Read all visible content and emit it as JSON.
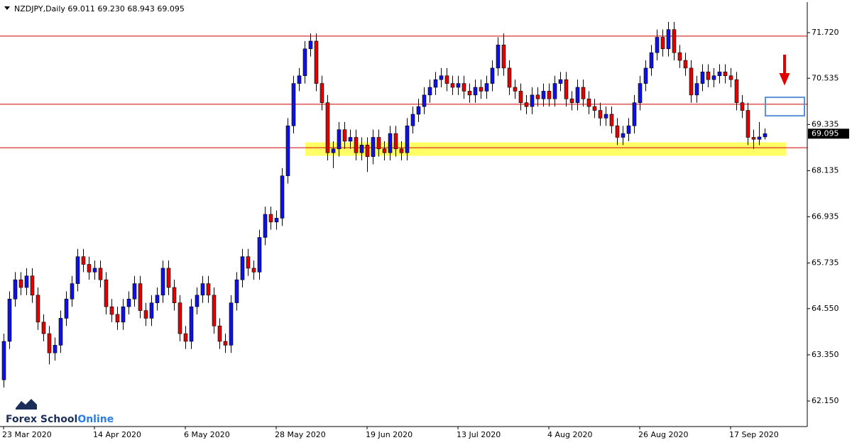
{
  "chart_data": {
    "type": "candlestick",
    "title": "NZDJPY,Daily  69.011 69.230 68.943 69.095",
    "logo": [
      "Forex School",
      "Online"
    ],
    "up_color": "#1010e8",
    "down_color": "#e00000",
    "grid": false,
    "ylim": [
      61.505,
      72.513
    ],
    "yticks": [
      {
        "value": 62.15,
        "label": "62.150"
      },
      {
        "value": 63.35,
        "label": "63.350"
      },
      {
        "value": 64.55,
        "label": "64.550"
      },
      65.735,
      66.935,
      {
        "value": 68.135,
        "label": "68.135"
      },
      69.335,
      {
        "value": 70.535,
        "label": "70.535"
      },
      {
        "value": 71.72,
        "label": "71.720"
      }
    ],
    "hlines": [
      {
        "value": 71.63,
        "color": "#cc0000"
      },
      {
        "value": 69.86,
        "color": "#cc0000"
      },
      {
        "value": 68.73,
        "color": "#cc0000"
      }
    ],
    "zone": {
      "range": [
        68.52,
        68.87
      ],
      "color": "#ffff66"
    },
    "target_box": {
      "range": [
        69.56,
        70.04
      ],
      "color": "#5b8fd6"
    },
    "categories": [
      "23 Mar 2020",
      null,
      null,
      null,
      null,
      null,
      null,
      null,
      null,
      null,
      null,
      null,
      null,
      null,
      null,
      null,
      "14 Apr 2020",
      null,
      null,
      null,
      null,
      null,
      null,
      null,
      null,
      null,
      null,
      null,
      null,
      null,
      null,
      null,
      "6 May 2020",
      null,
      null,
      null,
      null,
      null,
      null,
      null,
      null,
      null,
      null,
      null,
      null,
      null,
      null,
      null,
      "28 May 2020",
      null,
      null,
      null,
      null,
      null,
      null,
      null,
      null,
      null,
      null,
      null,
      null,
      null,
      null,
      null,
      "19 Jun 2020",
      null,
      null,
      null,
      null,
      null,
      null,
      null,
      null,
      null,
      null,
      null,
      null,
      null,
      null,
      null,
      "13 Jul 2020",
      null,
      null,
      null,
      null,
      null,
      null,
      null,
      null,
      null,
      null,
      null,
      null,
      null,
      null,
      null,
      "4 Aug 2020",
      null,
      null,
      null,
      null,
      null,
      null,
      null,
      null,
      null,
      null,
      null,
      null,
      null,
      null,
      null,
      "26 Aug 2020",
      null,
      null,
      null,
      null,
      null,
      null,
      null,
      null,
      null,
      null,
      null,
      null,
      null,
      null,
      null,
      "17 Sep 2020",
      null,
      null,
      null,
      null,
      null,
      null
    ],
    "ohlc": [
      [
        62.7,
        63.9,
        62.5,
        63.7
      ],
      [
        63.7,
        65.0,
        63.5,
        64.8
      ],
      [
        64.8,
        65.5,
        64.6,
        65.3
      ],
      [
        65.3,
        65.5,
        64.9,
        65.1
      ],
      [
        65.1,
        65.6,
        64.9,
        65.4
      ],
      [
        65.4,
        65.6,
        64.7,
        64.9
      ],
      [
        64.9,
        65.1,
        64.0,
        64.2
      ],
      [
        64.2,
        64.4,
        63.7,
        63.9
      ],
      [
        63.9,
        64.1,
        63.1,
        63.4
      ],
      [
        63.4,
        63.8,
        63.2,
        63.6
      ],
      [
        63.6,
        64.5,
        63.4,
        64.3
      ],
      [
        64.3,
        65.0,
        64.1,
        64.8
      ],
      [
        64.8,
        65.4,
        64.6,
        65.2
      ],
      [
        65.2,
        66.1,
        65.0,
        65.9
      ],
      [
        65.9,
        66.1,
        65.5,
        65.7
      ],
      [
        65.7,
        65.9,
        65.3,
        65.5
      ],
      [
        65.5,
        65.8,
        65.3,
        65.6
      ],
      [
        65.6,
        65.8,
        65.1,
        65.3
      ],
      [
        65.3,
        65.5,
        64.4,
        64.6
      ],
      [
        64.6,
        64.8,
        64.2,
        64.4
      ],
      [
        64.4,
        64.6,
        64.0,
        64.2
      ],
      [
        64.2,
        64.8,
        64.0,
        64.6
      ],
      [
        64.6,
        65.0,
        64.4,
        64.8
      ],
      [
        64.8,
        65.4,
        64.6,
        65.2
      ],
      [
        65.2,
        65.4,
        64.3,
        64.5
      ],
      [
        64.5,
        64.7,
        64.1,
        64.3
      ],
      [
        64.3,
        64.9,
        64.1,
        64.7
      ],
      [
        64.7,
        65.1,
        64.5,
        64.9
      ],
      [
        64.9,
        65.8,
        64.7,
        65.6
      ],
      [
        65.6,
        65.8,
        64.9,
        65.1
      ],
      [
        65.1,
        65.3,
        64.5,
        64.7
      ],
      [
        64.7,
        64.9,
        63.7,
        63.9
      ],
      [
        63.9,
        64.1,
        63.5,
        63.7
      ],
      [
        63.7,
        64.8,
        63.5,
        64.6
      ],
      [
        64.6,
        65.1,
        64.4,
        64.9
      ],
      [
        64.9,
        65.4,
        64.7,
        65.2
      ],
      [
        65.2,
        65.4,
        64.7,
        64.9
      ],
      [
        64.9,
        65.1,
        63.9,
        64.1
      ],
      [
        64.1,
        64.3,
        63.5,
        63.7
      ],
      [
        63.7,
        63.9,
        63.4,
        63.6
      ],
      [
        63.6,
        64.9,
        63.4,
        64.7
      ],
      [
        64.7,
        65.5,
        64.5,
        65.3
      ],
      [
        65.3,
        66.1,
        65.1,
        65.9
      ],
      [
        65.9,
        66.1,
        65.4,
        65.6
      ],
      [
        65.6,
        65.8,
        65.3,
        65.5
      ],
      [
        65.5,
        66.6,
        65.3,
        66.4
      ],
      [
        66.4,
        67.2,
        66.2,
        67.0
      ],
      [
        67.0,
        67.2,
        66.6,
        66.8
      ],
      [
        66.8,
        67.1,
        66.6,
        66.9
      ],
      [
        66.9,
        68.2,
        66.7,
        68.0
      ],
      [
        68.0,
        69.5,
        67.8,
        69.3
      ],
      [
        69.3,
        70.6,
        69.1,
        70.4
      ],
      [
        70.4,
        70.8,
        70.2,
        70.6
      ],
      [
        70.6,
        71.5,
        70.4,
        71.3
      ],
      [
        71.3,
        71.7,
        71.1,
        71.5
      ],
      [
        71.5,
        71.7,
        70.2,
        70.4
      ],
      [
        70.4,
        70.6,
        69.7,
        69.9
      ],
      [
        69.9,
        70.1,
        68.4,
        68.6
      ],
      [
        68.6,
        68.9,
        68.2,
        68.7
      ],
      [
        68.7,
        69.4,
        68.5,
        69.2
      ],
      [
        69.2,
        69.4,
        68.7,
        68.9
      ],
      [
        68.9,
        69.2,
        68.7,
        69.0
      ],
      [
        69.0,
        69.2,
        68.4,
        68.6
      ],
      [
        68.6,
        69.0,
        68.4,
        68.8
      ],
      [
        68.8,
        69.0,
        68.1,
        68.5
      ],
      [
        68.5,
        69.2,
        68.3,
        69.0
      ],
      [
        69.0,
        69.2,
        68.5,
        68.7
      ],
      [
        68.7,
        68.9,
        68.4,
        68.6
      ],
      [
        68.6,
        69.3,
        68.4,
        69.1
      ],
      [
        69.1,
        69.3,
        68.5,
        68.7
      ],
      [
        68.7,
        68.9,
        68.4,
        68.6
      ],
      [
        68.6,
        69.5,
        68.4,
        69.3
      ],
      [
        69.3,
        69.8,
        69.1,
        69.6
      ],
      [
        69.6,
        70.0,
        69.4,
        69.8
      ],
      [
        69.8,
        70.3,
        69.6,
        70.1
      ],
      [
        70.1,
        70.5,
        69.9,
        70.3
      ],
      [
        70.3,
        70.7,
        70.1,
        70.5
      ],
      [
        70.5,
        70.8,
        70.3,
        70.6
      ],
      [
        70.6,
        70.8,
        70.2,
        70.4
      ],
      [
        70.4,
        70.6,
        70.1,
        70.3
      ],
      [
        70.3,
        70.6,
        70.1,
        70.4
      ],
      [
        70.4,
        70.6,
        70.0,
        70.2
      ],
      [
        70.2,
        70.4,
        69.9,
        70.1
      ],
      [
        70.1,
        70.5,
        69.9,
        70.3
      ],
      [
        70.3,
        70.5,
        70.0,
        70.2
      ],
      [
        70.2,
        70.6,
        70.0,
        70.4
      ],
      [
        70.4,
        71.0,
        70.2,
        70.8
      ],
      [
        70.8,
        71.6,
        70.6,
        71.4
      ],
      [
        71.4,
        71.7,
        70.6,
        70.8
      ],
      [
        70.8,
        71.0,
        70.1,
        70.3
      ],
      [
        70.3,
        70.5,
        70.0,
        70.2
      ],
      [
        70.2,
        70.4,
        69.7,
        69.9
      ],
      [
        69.9,
        70.1,
        69.6,
        69.8
      ],
      [
        69.8,
        70.3,
        69.6,
        70.1
      ],
      [
        70.1,
        70.3,
        69.8,
        70.0
      ],
      [
        70.0,
        70.4,
        69.8,
        70.2
      ],
      [
        70.2,
        70.4,
        69.8,
        70.0
      ],
      [
        70.0,
        70.6,
        69.8,
        70.4
      ],
      [
        70.4,
        70.7,
        70.2,
        70.5
      ],
      [
        70.5,
        70.7,
        69.8,
        70.0
      ],
      [
        70.0,
        70.2,
        69.7,
        69.9
      ],
      [
        69.9,
        70.5,
        69.7,
        70.3
      ],
      [
        70.3,
        70.5,
        69.8,
        70.0
      ],
      [
        70.0,
        70.2,
        69.6,
        69.8
      ],
      [
        69.8,
        70.0,
        69.5,
        69.7
      ],
      [
        69.7,
        69.9,
        69.3,
        69.5
      ],
      [
        69.5,
        69.8,
        69.3,
        69.6
      ],
      [
        69.6,
        69.8,
        69.1,
        69.3
      ],
      [
        69.3,
        69.5,
        68.8,
        69.0
      ],
      [
        69.0,
        69.3,
        68.8,
        69.1
      ],
      [
        69.1,
        69.5,
        68.9,
        69.3
      ],
      [
        69.3,
        70.1,
        69.1,
        69.9
      ],
      [
        69.9,
        70.6,
        69.7,
        70.4
      ],
      [
        70.4,
        71.0,
        70.2,
        70.8
      ],
      [
        70.8,
        71.4,
        70.6,
        71.2
      ],
      [
        71.2,
        71.8,
        71.0,
        71.6
      ],
      [
        71.6,
        71.8,
        71.1,
        71.3
      ],
      [
        71.3,
        72.0,
        71.1,
        71.8
      ],
      [
        71.8,
        72.0,
        71.0,
        71.2
      ],
      [
        71.2,
        71.4,
        70.8,
        71.0
      ],
      [
        71.0,
        71.2,
        70.6,
        70.8
      ],
      [
        70.8,
        71.0,
        69.9,
        70.1
      ],
      [
        70.1,
        70.6,
        69.9,
        70.4
      ],
      [
        70.4,
        70.9,
        70.2,
        70.7
      ],
      [
        70.7,
        70.9,
        70.3,
        70.5
      ],
      [
        70.5,
        70.8,
        70.3,
        70.6
      ],
      [
        70.6,
        70.9,
        70.4,
        70.7
      ],
      [
        70.7,
        70.9,
        70.4,
        70.6
      ],
      [
        70.6,
        70.8,
        70.3,
        70.5
      ],
      [
        70.5,
        70.7,
        69.7,
        69.9
      ],
      [
        69.9,
        70.1,
        69.5,
        69.7
      ],
      [
        69.7,
        69.9,
        68.8,
        69.0
      ],
      [
        69.0,
        69.2,
        68.7,
        68.95
      ],
      [
        68.95,
        69.4,
        68.8,
        69.01
      ],
      [
        69.011,
        69.23,
        68.943,
        69.095
      ]
    ]
  }
}
